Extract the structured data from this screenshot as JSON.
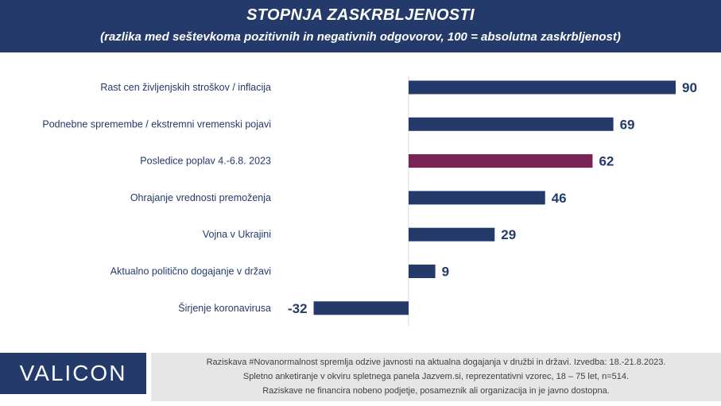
{
  "header": {
    "title": "STOPNJA ZASKRBLJENOSTI",
    "subtitle": "(razlika med seštevkoma pozitivnih in negativnih odgovorov, 100 = absolutna zaskrbljenost)"
  },
  "chart_data": {
    "type": "bar",
    "orientation": "horizontal",
    "categories": [
      "Rast cen življenjskih stroškov / inflacija",
      "Podnebne spremembe / ekstremni vremenski pojavi",
      "Posledice poplav 4.-6.8. 2023",
      "Ohrajanje vrednosti premoženja",
      "Vojna v Ukrajini",
      "Aktualno politično dogajanje v državi",
      "Širjenje koronavirusa"
    ],
    "values": [
      90,
      69,
      62,
      46,
      29,
      9,
      -32
    ],
    "bar_colors": [
      "#243A6B",
      "#243A6B",
      "#7A2455",
      "#243A6B",
      "#243A6B",
      "#243A6B",
      "#243A6B"
    ],
    "xlim": [
      -32,
      90
    ],
    "grid": false,
    "legend": "none"
  },
  "footer": {
    "logo": "VALICON",
    "lines": [
      "Raziskava #Novanormalnost spremlja odzive javnosti na aktualna dogajanja v družbi in državi. Izvedba: 18.-21.8.2023.",
      "Spletno anketiranje v okviru spletnega panela Jazvem.si, reprezentativni vzorec, 18 – 75 let, n=514.",
      "Raziskave ne financira nobeno podjetje, posameznik ali organizacija in je javno dostopna."
    ]
  }
}
